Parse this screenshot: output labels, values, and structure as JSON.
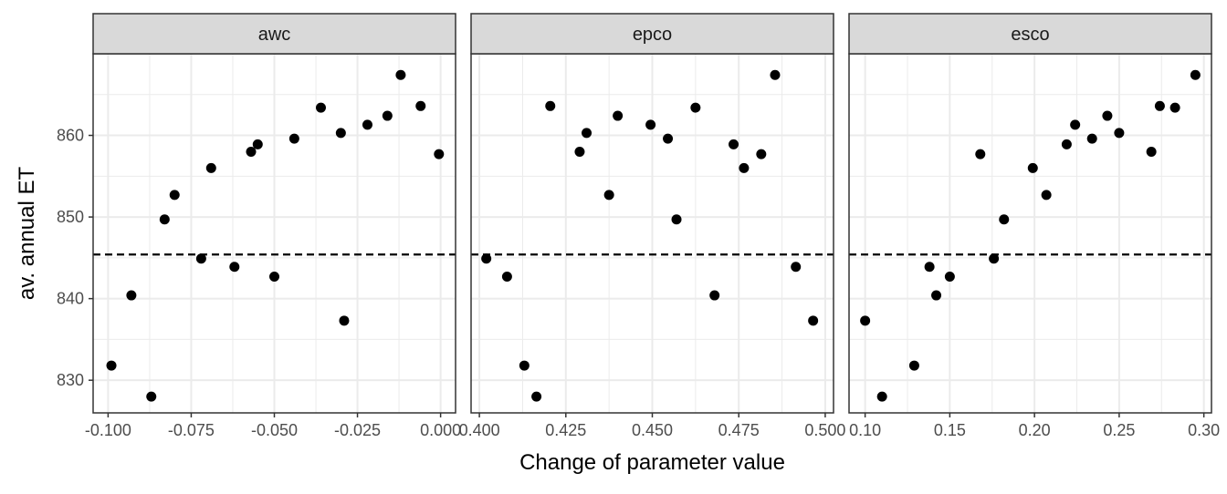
{
  "chart_data": {
    "type": "scatter",
    "ylabel": "av. annual ET",
    "xlabel": "Change of parameter value",
    "ylim": [
      826,
      870
    ],
    "y_ticks": [
      830,
      840,
      850,
      860
    ],
    "y_tick_labels": [
      "830",
      "840",
      "850",
      "860"
    ],
    "reference_line": {
      "y": 845.4,
      "style": "dashed"
    },
    "grid": true,
    "colors": {
      "point": "#000000",
      "strip_bg": "#d9d9d9",
      "grid": "#ebebeb",
      "border": "#333333"
    },
    "panels": [
      {
        "title": "awc",
        "xlim": [
          -0.1045,
          0.0045
        ],
        "x_ticks": [
          -0.1,
          -0.075,
          -0.05,
          -0.025,
          0.0
        ],
        "x_tick_labels": [
          "-0.100",
          "-0.075",
          "-0.050",
          "-0.025",
          "0.000"
        ],
        "points": [
          {
            "x": -0.099,
            "y": 831.8
          },
          {
            "x": -0.093,
            "y": 840.4
          },
          {
            "x": -0.087,
            "y": 828.0
          },
          {
            "x": -0.083,
            "y": 849.7
          },
          {
            "x": -0.08,
            "y": 852.7
          },
          {
            "x": -0.072,
            "y": 844.9
          },
          {
            "x": -0.069,
            "y": 856.0
          },
          {
            "x": -0.062,
            "y": 843.9
          },
          {
            "x": -0.057,
            "y": 858.0
          },
          {
            "x": -0.055,
            "y": 858.9
          },
          {
            "x": -0.05,
            "y": 842.7
          },
          {
            "x": -0.044,
            "y": 859.6
          },
          {
            "x": -0.036,
            "y": 863.4
          },
          {
            "x": -0.03,
            "y": 860.3
          },
          {
            "x": -0.029,
            "y": 837.3
          },
          {
            "x": -0.022,
            "y": 861.3
          },
          {
            "x": -0.016,
            "y": 862.4
          },
          {
            "x": -0.012,
            "y": 867.4
          },
          {
            "x": -0.006,
            "y": 863.6
          },
          {
            "x": -0.0005,
            "y": 857.7
          }
        ]
      },
      {
        "title": "epco",
        "xlim": [
          0.3976,
          0.5024
        ],
        "x_ticks": [
          0.4,
          0.425,
          0.45,
          0.475,
          0.5
        ],
        "x_tick_labels": [
          "0.400",
          "0.425",
          "0.450",
          "0.475",
          "0.500"
        ],
        "points": [
          {
            "x": 0.402,
            "y": 844.9
          },
          {
            "x": 0.408,
            "y": 842.7
          },
          {
            "x": 0.413,
            "y": 831.8
          },
          {
            "x": 0.4165,
            "y": 828.0
          },
          {
            "x": 0.4205,
            "y": 863.6
          },
          {
            "x": 0.429,
            "y": 858.0
          },
          {
            "x": 0.431,
            "y": 860.3
          },
          {
            "x": 0.4375,
            "y": 852.7
          },
          {
            "x": 0.44,
            "y": 862.4
          },
          {
            "x": 0.4495,
            "y": 861.3
          },
          {
            "x": 0.4545,
            "y": 859.6
          },
          {
            "x": 0.457,
            "y": 849.7
          },
          {
            "x": 0.4625,
            "y": 863.4
          },
          {
            "x": 0.468,
            "y": 840.4
          },
          {
            "x": 0.4735,
            "y": 858.9
          },
          {
            "x": 0.4765,
            "y": 856.0
          },
          {
            "x": 0.4815,
            "y": 857.7
          },
          {
            "x": 0.4855,
            "y": 867.4
          },
          {
            "x": 0.4915,
            "y": 843.9
          },
          {
            "x": 0.4965,
            "y": 837.3
          }
        ]
      },
      {
        "title": "esco",
        "xlim": [
          0.0905,
          0.3045
        ],
        "x_ticks": [
          0.1,
          0.15,
          0.2,
          0.25,
          0.3
        ],
        "x_tick_labels": [
          "0.10",
          "0.15",
          "0.20",
          "0.25",
          "0.30"
        ],
        "points": [
          {
            "x": 0.1,
            "y": 837.3
          },
          {
            "x": 0.11,
            "y": 828.0
          },
          {
            "x": 0.129,
            "y": 831.8
          },
          {
            "x": 0.138,
            "y": 843.9
          },
          {
            "x": 0.142,
            "y": 840.4
          },
          {
            "x": 0.15,
            "y": 842.7
          },
          {
            "x": 0.168,
            "y": 857.7
          },
          {
            "x": 0.176,
            "y": 844.9
          },
          {
            "x": 0.182,
            "y": 849.7
          },
          {
            "x": 0.199,
            "y": 856.0
          },
          {
            "x": 0.207,
            "y": 852.7
          },
          {
            "x": 0.219,
            "y": 858.9
          },
          {
            "x": 0.224,
            "y": 861.3
          },
          {
            "x": 0.234,
            "y": 859.6
          },
          {
            "x": 0.243,
            "y": 862.4
          },
          {
            "x": 0.25,
            "y": 860.3
          },
          {
            "x": 0.269,
            "y": 858.0
          },
          {
            "x": 0.274,
            "y": 863.6
          },
          {
            "x": 0.283,
            "y": 863.4
          },
          {
            "x": 0.295,
            "y": 867.4
          }
        ]
      }
    ]
  }
}
